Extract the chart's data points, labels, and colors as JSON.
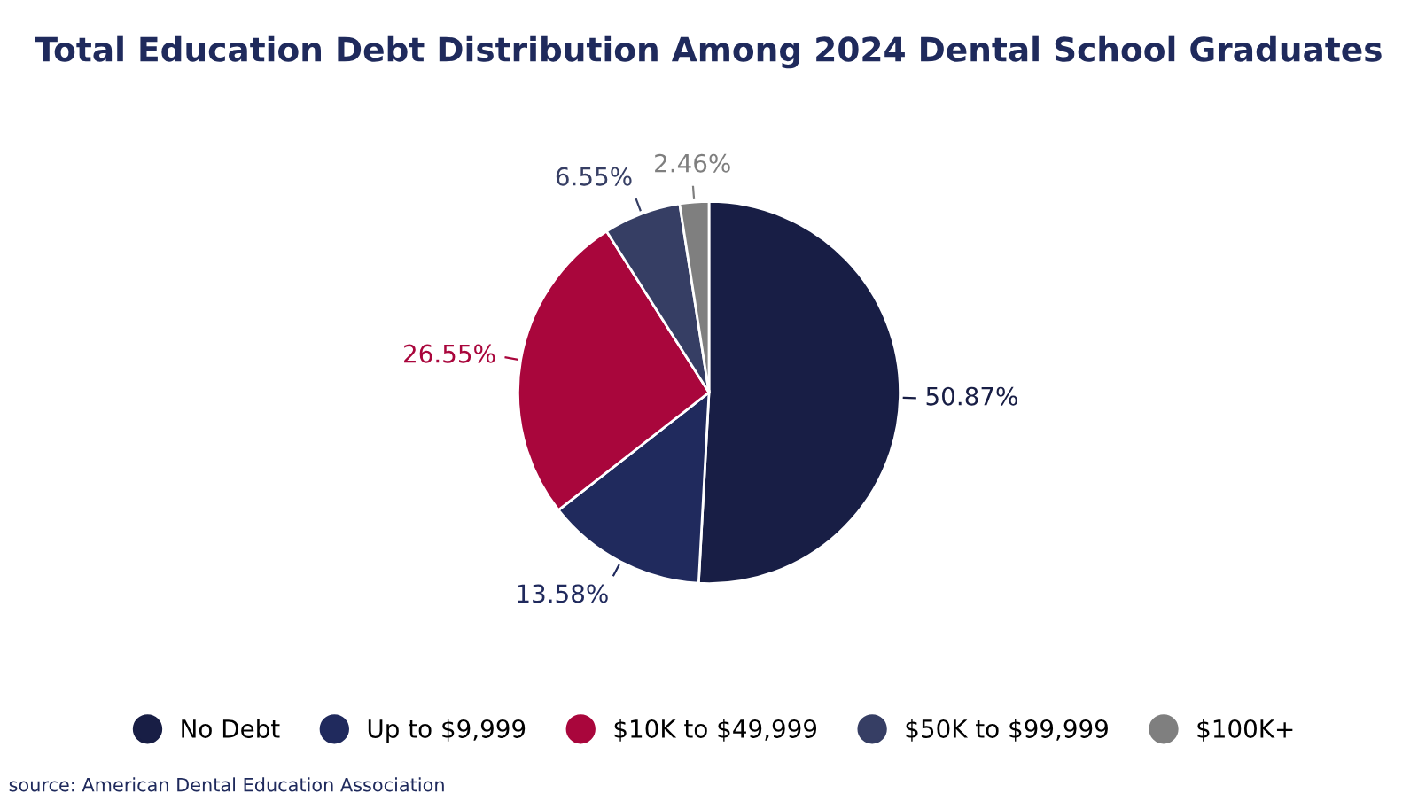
{
  "chart_data": {
    "type": "pie",
    "title": "Total Education Debt Distribution Among 2024 Dental School Graduates",
    "categories": [
      "No Debt",
      "Up to $9,999",
      "$10K to $49,999",
      "$50K to $99,999",
      "$100K+"
    ],
    "values": [
      50.87,
      13.58,
      26.55,
      6.55,
      2.46
    ],
    "value_labels": [
      "50.87%",
      "13.58%",
      "26.55%",
      "6.55%",
      "2.46%"
    ],
    "colors": [
      "#181e45",
      "#202a5d",
      "#a9063c",
      "#363e64",
      "#7f7f7f"
    ],
    "legend": "bottom",
    "annotations": [
      "source: American Dental Education Association"
    ]
  }
}
